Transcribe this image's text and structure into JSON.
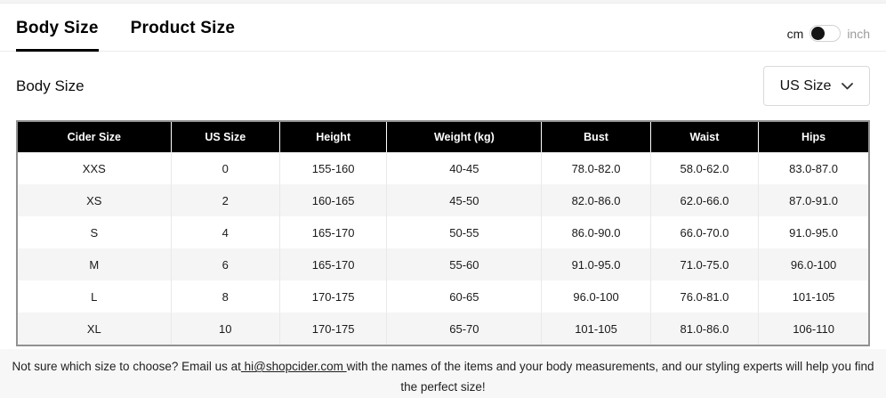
{
  "tabs": {
    "body_size_label": "Body Size",
    "product_size_label": "Product Size",
    "active": "Body Size"
  },
  "unit_toggle": {
    "left_label": "cm",
    "right_label": "inch",
    "selected": "cm"
  },
  "section": {
    "title": "Body Size"
  },
  "size_select": {
    "value": "US Size"
  },
  "table": {
    "headers": [
      "Cider Size",
      "US Size",
      "Height",
      "Weight (kg)",
      "Bust",
      "Waist",
      "Hips"
    ],
    "rows": [
      [
        "XXS",
        "0",
        "155-160",
        "40-45",
        "78.0-82.0",
        "58.0-62.0",
        "83.0-87.0"
      ],
      [
        "XS",
        "2",
        "160-165",
        "45-50",
        "82.0-86.0",
        "62.0-66.0",
        "87.0-91.0"
      ],
      [
        "S",
        "4",
        "165-170",
        "50-55",
        "86.0-90.0",
        "66.0-70.0",
        "91.0-95.0"
      ],
      [
        "M",
        "6",
        "165-170",
        "55-60",
        "91.0-95.0",
        "71.0-75.0",
        "96.0-100"
      ],
      [
        "L",
        "8",
        "170-175",
        "60-65",
        "96.0-100",
        "76.0-81.0",
        "101-105"
      ],
      [
        "XL",
        "10",
        "170-175",
        "65-70",
        "101-105",
        "81.0-86.0",
        "106-110"
      ]
    ]
  },
  "footer": {
    "text_before": "Not sure which size to choose? Email us at",
    "email_link": " hi@shopcider.com ",
    "text_after": "with the names of the items and your body measurements, and our styling experts will help you find the perfect size!"
  },
  "colors": {
    "header_bg": "#000000",
    "row_alt_bg": "#f5f5f5",
    "footer_bg": "#f7f7f7",
    "table_border": "#919191",
    "accent": "#000000"
  }
}
